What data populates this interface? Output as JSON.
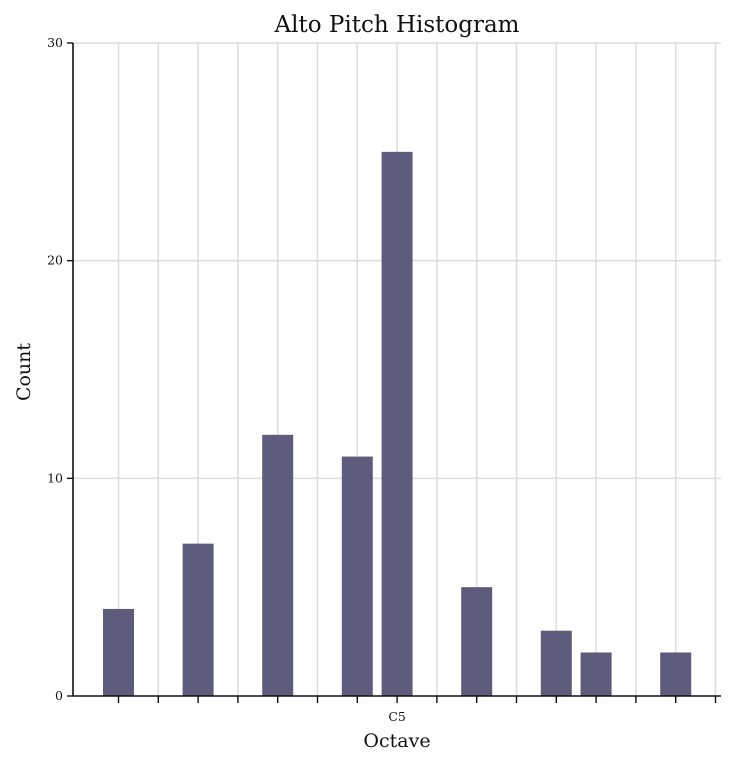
{
  "chart_data": {
    "type": "bar",
    "title": "Alto Pitch Histogram",
    "xlabel": "Octave",
    "ylabel": "Count",
    "ylim": [
      0,
      30
    ],
    "yticks": [
      0,
      10,
      20,
      30
    ],
    "x_tick_labels": [
      "",
      "",
      "",
      "",
      "",
      "",
      "",
      "C5",
      "",
      "",
      "",
      "",
      "",
      "",
      "",
      ""
    ],
    "bar_values": [
      4,
      0,
      7,
      0,
      12,
      0,
      11,
      25,
      0,
      5,
      0,
      3,
      2,
      0,
      2
    ],
    "bar_color": "#5f5b7d",
    "grid": true
  }
}
